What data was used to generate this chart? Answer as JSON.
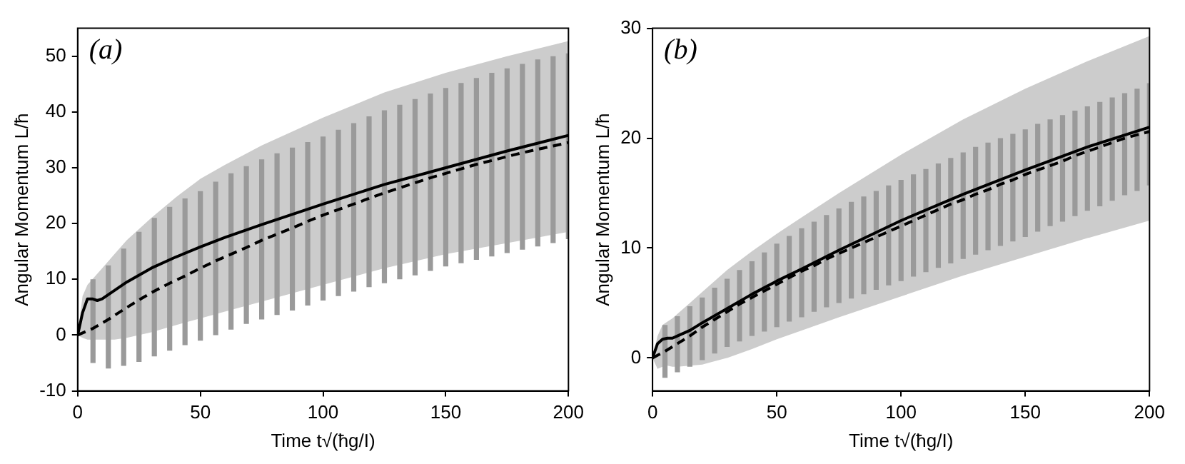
{
  "chart_data": [
    {
      "type": "line",
      "title": "(a)",
      "xlabel": "Time t√(ħg/I)",
      "ylabel": "Angular Momentum L/ħ",
      "xlim": [
        0,
        200
      ],
      "xticks": [
        0,
        50,
        100,
        150,
        200
      ],
      "ylim": [
        -10,
        55
      ],
      "yticks": [
        -10,
        0,
        10,
        20,
        30,
        40,
        50
      ],
      "grid": false,
      "legend": false,
      "marker": "none",
      "series": [
        {
          "color": "#000000",
          "line_style": "solid",
          "x": [
            0,
            2,
            4,
            6,
            8,
            10,
            15,
            20,
            30,
            40,
            50,
            60,
            75,
            100,
            125,
            150,
            175,
            200
          ],
          "values": [
            0,
            4,
            6.5,
            6.5,
            6.2,
            6.5,
            8,
            9.5,
            12,
            14,
            15.8,
            17.5,
            19.8,
            23.5,
            27,
            30,
            33,
            35.8
          ],
          "lower": [
            0,
            -0.5,
            -0.8,
            -0.8,
            -0.8,
            -0.8,
            -0.8,
            -0.5,
            0.5,
            1.8,
            3,
            4.2,
            6,
            9,
            12,
            14.5,
            16.5,
            18.5
          ],
          "upper": [
            0,
            7,
            9,
            10,
            11,
            12,
            14.5,
            17,
            21,
            24.7,
            28,
            30.5,
            34,
            39,
            43.5,
            47,
            50,
            52.7
          ]
        },
        {
          "color": "#000000",
          "line_style": "dashed",
          "x": [
            0,
            6.25,
            12.5,
            18.75,
            25,
            31.25,
            37.5,
            43.75,
            50,
            56.25,
            62.5,
            68.75,
            75,
            81.25,
            87.5,
            93.75,
            100,
            106.25,
            112.5,
            118.75,
            125,
            131.25,
            137.5,
            143.75,
            150,
            156.25,
            162.5,
            168.75,
            175,
            181.25,
            187.5,
            193.75,
            200
          ],
          "values": [
            0,
            1.2,
            2.8,
            4.6,
            6.3,
            7.9,
            9.3,
            10.6,
            12,
            13.3,
            14.5,
            15.7,
            17,
            18.1,
            19.2,
            20.4,
            21.5,
            22.5,
            23.5,
            24.5,
            25.5,
            26.4,
            27.3,
            28.2,
            29,
            29.8,
            30.6,
            31.3,
            32,
            32.7,
            33.3,
            33.9,
            34.5
          ],
          "errors": [
            null,
            [
              -5,
              10
            ],
            [
              -6,
              12.5
            ],
            [
              -5.5,
              15.5
            ],
            [
              -4.8,
              18.5
            ],
            [
              -3.8,
              21
            ],
            [
              -2.8,
              23
            ],
            [
              -1.8,
              24.5
            ],
            [
              -1,
              25.8
            ],
            [
              0,
              27.5
            ],
            [
              1,
              29
            ],
            [
              2,
              30.3
            ],
            [
              2.8,
              31.5
            ],
            [
              3.6,
              32.6
            ],
            [
              4.4,
              33.6
            ],
            [
              5.3,
              34.6
            ],
            [
              6.2,
              35.6
            ],
            [
              7,
              36.8
            ],
            [
              7.8,
              38
            ],
            [
              8.6,
              39.2
            ],
            [
              9.3,
              40.3
            ],
            [
              10,
              41.3
            ],
            [
              10.7,
              42.3
            ],
            [
              11.5,
              43.3
            ],
            [
              12.3,
              44.3
            ],
            [
              12.9,
              45.2
            ],
            [
              13.5,
              46.1
            ],
            [
              14.1,
              47
            ],
            [
              14.7,
              47.8
            ],
            [
              15.3,
              48.6
            ],
            [
              15.9,
              49.4
            ],
            [
              16.5,
              50
            ],
            [
              17.2,
              50.5
            ]
          ]
        }
      ]
    },
    {
      "type": "line",
      "title": "(b)",
      "xlabel": "Time t√(ħg/I)",
      "ylabel": "Angular Momentum L/ħ",
      "xlim": [
        0,
        200
      ],
      "xticks": [
        0,
        50,
        100,
        150,
        200
      ],
      "ylim": [
        -3,
        30
      ],
      "yticks": [
        0,
        10,
        20,
        30
      ],
      "grid": false,
      "legend": false,
      "marker": "none",
      "series": [
        {
          "color": "#000000",
          "line_style": "solid",
          "x": [
            0,
            2,
            4,
            6,
            8,
            10,
            15,
            20,
            30,
            40,
            50,
            60,
            75,
            100,
            125,
            150,
            175,
            200
          ],
          "values": [
            0,
            1.3,
            1.7,
            1.8,
            1.8,
            2,
            2.5,
            3.2,
            4.5,
            5.8,
            7,
            8.1,
            9.8,
            12.5,
            14.9,
            17.1,
            19.2,
            21
          ],
          "lower": [
            0,
            -1,
            -0.8,
            -0.7,
            -0.8,
            -0.8,
            -0.7,
            -0.6,
            0,
            0.8,
            1.7,
            2.5,
            3.7,
            5.6,
            7.5,
            9.2,
            10.9,
            12.5
          ],
          "upper": [
            0,
            2,
            3,
            3.3,
            3.6,
            4,
            5,
            6,
            8,
            9.7,
            11.3,
            12.8,
            15,
            18.5,
            21.7,
            24.5,
            27,
            29.3
          ]
        },
        {
          "color": "#000000",
          "line_style": "dashed",
          "x": [
            0,
            5,
            10,
            15,
            20,
            25,
            30,
            35,
            40,
            45,
            50,
            55,
            60,
            65,
            70,
            75,
            80,
            85,
            90,
            95,
            100,
            105,
            110,
            115,
            120,
            125,
            130,
            135,
            140,
            145,
            150,
            155,
            160,
            165,
            170,
            175,
            180,
            185,
            190,
            195,
            200
          ],
          "values": [
            0,
            0.6,
            1.3,
            2,
            2.8,
            3.5,
            4.2,
            4.9,
            5.5,
            6.1,
            6.7,
            7.3,
            7.9,
            8.4,
            9,
            9.5,
            10,
            10.5,
            11,
            11.5,
            12,
            12.5,
            13,
            13.5,
            14,
            14.4,
            14.9,
            15.3,
            15.8,
            16.2,
            16.7,
            17.1,
            17.5,
            17.9,
            18.4,
            18.8,
            19.2,
            19.6,
            20,
            20.3,
            20.6
          ],
          "errors": [
            null,
            [
              -1.8,
              3
            ],
            [
              -1.3,
              3.8
            ],
            [
              -0.8,
              4.7
            ],
            [
              -0.2,
              5.5
            ],
            [
              0.4,
              6.4
            ],
            [
              1,
              7.2
            ],
            [
              1.5,
              8
            ],
            [
              2,
              8.8
            ],
            [
              2.4,
              9.6
            ],
            [
              2.8,
              10.4
            ],
            [
              3.3,
              11.1
            ],
            [
              3.7,
              11.8
            ],
            [
              4.2,
              12.4
            ],
            [
              4.6,
              13
            ],
            [
              5,
              13.6
            ],
            [
              5.4,
              14.2
            ],
            [
              5.8,
              14.7
            ],
            [
              6.2,
              15.2
            ],
            [
              6.6,
              15.7
            ],
            [
              7,
              16.2
            ],
            [
              7.4,
              16.7
            ],
            [
              7.8,
              17.2
            ],
            [
              8.2,
              17.7
            ],
            [
              8.6,
              18.2
            ],
            [
              9,
              18.7
            ],
            [
              9.4,
              19.2
            ],
            [
              9.8,
              19.6
            ],
            [
              10.2,
              20
            ],
            [
              10.6,
              20.4
            ],
            [
              11,
              20.8
            ],
            [
              11.5,
              21.3
            ],
            [
              12,
              21.7
            ],
            [
              12.4,
              22.1
            ],
            [
              12.9,
              22.5
            ],
            [
              13.4,
              22.9
            ],
            [
              13.8,
              23.3
            ],
            [
              14.3,
              23.7
            ],
            [
              14.8,
              24.1
            ],
            [
              15.2,
              24.5
            ],
            [
              15.7,
              25
            ]
          ]
        }
      ]
    }
  ]
}
